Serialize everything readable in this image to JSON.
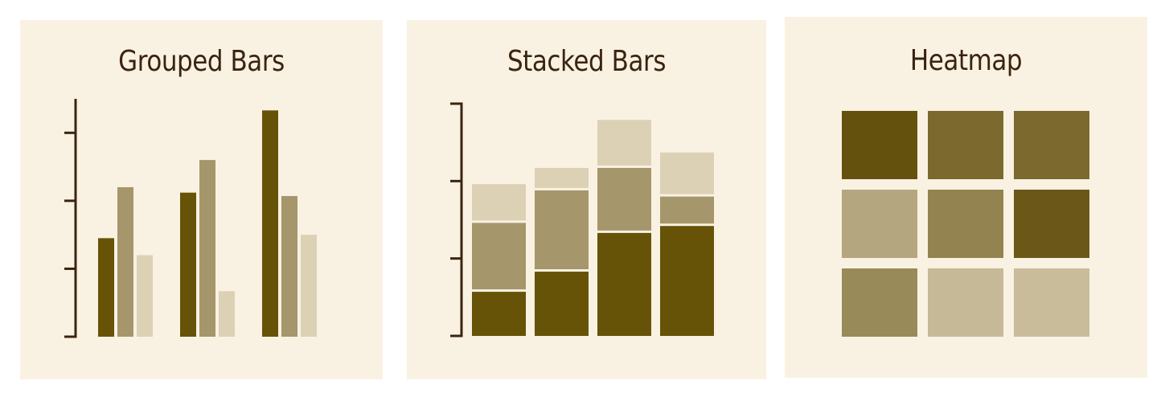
{
  "colors": {
    "background": "#f9f2e3",
    "axis": "#3a240f",
    "title": "#3a240f",
    "dark": "#665307",
    "medium": "#a5966b",
    "light": "#dcd1b5"
  },
  "chart_data": [
    {
      "type": "bar",
      "variant": "grouped",
      "title": "Grouped Bars",
      "xlabel": "",
      "ylabel": "",
      "show_tick_labels": false,
      "ylim": [
        0,
        3.5
      ],
      "yticks": [
        0,
        1,
        2,
        3
      ],
      "groups": 3,
      "series": [
        {
          "values": [
            1.45,
            2.12,
            3.33
          ],
          "color": "#665307"
        },
        {
          "values": [
            2.2,
            2.6,
            2.07
          ],
          "color": "#a5966b"
        },
        {
          "values": [
            1.2,
            0.67,
            1.5
          ],
          "color": "#dcd1b5"
        }
      ]
    },
    {
      "type": "bar",
      "variant": "stacked",
      "title": "Stacked Bars",
      "xlabel": "",
      "ylabel": "",
      "show_tick_labels": false,
      "ylim": [
        0,
        3
      ],
      "yticks": [
        0,
        1,
        2,
        3
      ],
      "stacks": 4,
      "series": [
        {
          "values": [
            0.57,
            0.83,
            1.33,
            1.42
          ],
          "color": "#665307"
        },
        {
          "values": [
            0.89,
            1.05,
            0.84,
            0.38
          ],
          "color": "#a5966b"
        },
        {
          "values": [
            0.5,
            0.29,
            0.62,
            0.57
          ],
          "color": "#dcd1b5"
        }
      ]
    },
    {
      "type": "heatmap",
      "title": "Heatmap",
      "xlabel": "",
      "ylabel": "",
      "rows": 3,
      "cols": 3,
      "values": [
        [
          0.95,
          0.78,
          0.78
        ],
        [
          0.35,
          0.6,
          0.9
        ],
        [
          0.55,
          0.22,
          0.2
        ]
      ],
      "color_low": "#e2d8c0",
      "color_high": "#5e4a05"
    }
  ]
}
